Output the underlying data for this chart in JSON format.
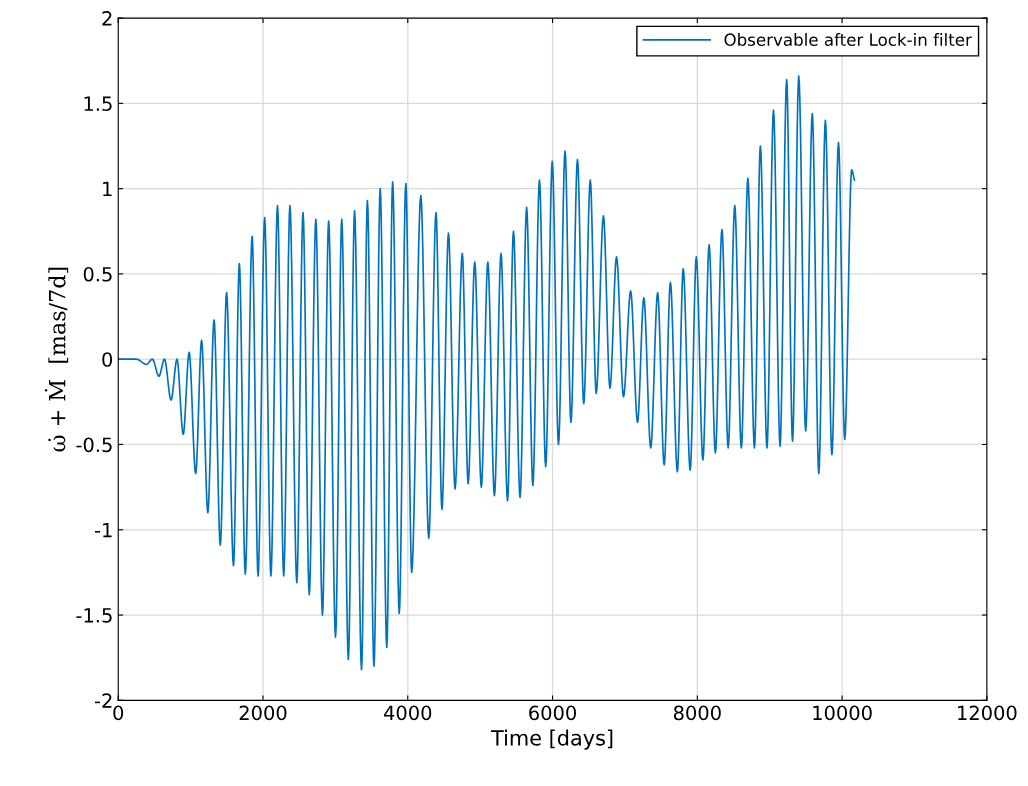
{
  "chart_data": {
    "type": "line",
    "xlabel": "Time [days]",
    "ylabel": "ω̇ + Ṁ  [mas/7d]",
    "xlim": [
      0,
      12000
    ],
    "xticks": [
      0,
      2000,
      4000,
      6000,
      8000,
      10000,
      12000
    ],
    "ylim": [
      -2,
      2
    ],
    "yticks": [
      -2,
      -1.5,
      -1,
      -0.5,
      0,
      0.5,
      1,
      1.5,
      2
    ],
    "grid": true,
    "legend": "top right",
    "marker": "none",
    "line_style": "solid",
    "series": [
      {
        "name": "Observable after Lock-in filter",
        "color": "#0072bd",
        "x": [
          0,
          250,
          390,
          472,
          562,
          639,
          730,
          812,
          898,
          980,
          1070,
          1152,
          1238,
          1324,
          1410,
          1497,
          1592,
          1673,
          1755,
          1850,
          1932,
          2023,
          2109,
          2200,
          2286,
          2372,
          2467,
          2553,
          2639,
          2730,
          2821,
          2907,
          3002,
          3088,
          3179,
          3265,
          3361,
          3442,
          3533,
          3619,
          3710,
          3791,
          3882,
          3973,
          4054,
          4180,
          4290,
          4390,
          4472,
          4562,
          4653,
          4753,
          4834,
          4925,
          5016,
          5106,
          5197,
          5288,
          5378,
          5460,
          5551,
          5642,
          5728,
          5819,
          5905,
          5996,
          6082,
          6173,
          6254,
          6344,
          6431,
          6521,
          6603,
          6703,
          6793,
          6884,
          6980,
          7079,
          7174,
          7261,
          7356,
          7452,
          7542,
          7628,
          7724,
          7805,
          7901,
          7986,
          8077,
          8163,
          8249,
          8340,
          8426,
          8517,
          8608,
          8698,
          8789,
          8871,
          8962,
          9052,
          9143,
          9234,
          9315,
          9401,
          9497,
          9588,
          9678,
          9769,
          9859,
          9950,
          10036,
          10132,
          10170
        ],
        "values": [
          0,
          0,
          -0.03,
          0.0,
          -0.1,
          0.0,
          -0.24,
          0.0,
          -0.44,
          0.04,
          -0.67,
          0.11,
          -0.9,
          0.23,
          -1.09,
          0.39,
          -1.21,
          0.56,
          -1.26,
          0.72,
          -1.27,
          0.83,
          -1.27,
          0.9,
          -1.27,
          0.9,
          -1.31,
          0.86,
          -1.38,
          0.82,
          -1.5,
          0.81,
          -1.63,
          0.82,
          -1.76,
          0.87,
          -1.82,
          0.93,
          -1.8,
          1.0,
          -1.69,
          1.04,
          -1.49,
          1.03,
          -1.25,
          0.96,
          -1.05,
          0.86,
          -0.88,
          0.74,
          -0.76,
          0.62,
          -0.73,
          0.57,
          -0.75,
          0.57,
          -0.8,
          0.62,
          -0.83,
          0.75,
          -0.81,
          0.89,
          -0.74,
          1.05,
          -0.63,
          1.16,
          -0.5,
          1.22,
          -0.37,
          1.17,
          -0.26,
          1.05,
          -0.2,
          0.84,
          -0.17,
          0.6,
          -0.22,
          0.4,
          -0.37,
          0.36,
          -0.52,
          0.39,
          -0.62,
          0.45,
          -0.66,
          0.53,
          -0.65,
          0.6,
          -0.59,
          0.67,
          -0.55,
          0.76,
          -0.52,
          0.9,
          -0.52,
          1.06,
          -0.52,
          1.25,
          -0.52,
          1.46,
          -0.51,
          1.64,
          -0.48,
          1.66,
          -0.42,
          1.44,
          -0.67,
          1.4,
          -0.56,
          1.27,
          -0.47,
          1.11,
          1.05
        ]
      }
    ]
  }
}
